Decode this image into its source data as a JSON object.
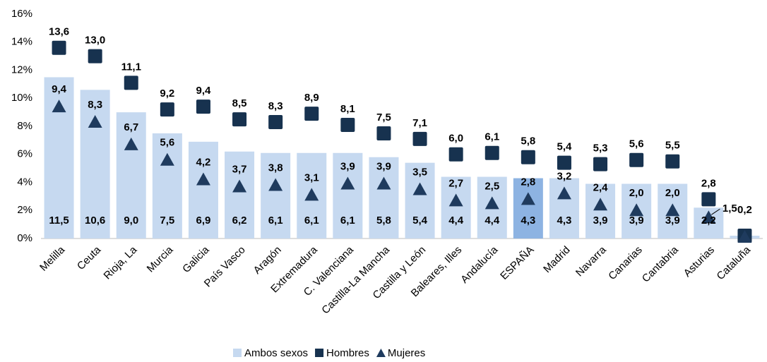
{
  "chart_data": {
    "type": "bar_marker",
    "categories": [
      "Melilla",
      "Ceuta",
      "Rioja, La",
      "Murcia",
      "Galicia",
      "País Vasco",
      "Aragón",
      "Extremadura",
      "C. Valenciana",
      "Castilla-La Mancha",
      "Castilla y León",
      "Baleares, Illes",
      "Andalucía",
      "ESPAÑA",
      "Madrid",
      "Navarra",
      "Canarias",
      "Cantabria",
      "Asturias",
      "Cataluña"
    ],
    "series": [
      {
        "name": "Ambos sexos",
        "color": "#c6d9f0",
        "highlight_color": "#8db3e2",
        "highlight_index": 13,
        "marker": "bar",
        "values": [
          11.5,
          10.6,
          9.0,
          7.5,
          6.9,
          6.2,
          6.1,
          6.1,
          6.1,
          5.8,
          5.4,
          4.4,
          4.4,
          4.3,
          4.3,
          3.9,
          3.9,
          3.9,
          2.2,
          0.2
        ],
        "value_labels": [
          "11,5",
          "10,6",
          "9,0",
          "7,5",
          "6,9",
          "6,2",
          "6,1",
          "6,1",
          "6,1",
          "5,8",
          "5,4",
          "4,4",
          "4,4",
          "4,3",
          "4,3",
          "3,9",
          "3,9",
          "3,9",
          "2,2",
          null
        ]
      },
      {
        "name": "Hombres",
        "color": "#17324f",
        "marker": "square",
        "values": [
          13.6,
          13.0,
          11.1,
          9.2,
          9.4,
          8.5,
          8.3,
          8.9,
          8.1,
          7.5,
          7.1,
          6.0,
          6.1,
          5.8,
          5.4,
          5.3,
          5.6,
          5.5,
          2.8,
          0.2
        ],
        "value_labels": [
          "13,6",
          "13,0",
          "11,1",
          "9,2",
          "9,4",
          "8,5",
          "8,3",
          "8,9",
          "8,1",
          "7,5",
          "7,1",
          "6,0",
          "6,1",
          "5,8",
          "5,4",
          "5,3",
          "5,6",
          "5,5",
          "2,8",
          "0,2"
        ]
      },
      {
        "name": "Mujeres",
        "color": "#1f3b5e",
        "marker": "triangle",
        "values": [
          9.4,
          8.3,
          6.7,
          5.6,
          4.2,
          3.7,
          3.8,
          3.1,
          3.9,
          3.9,
          3.5,
          2.7,
          2.5,
          2.8,
          3.2,
          2.4,
          2.0,
          2.0,
          1.5,
          0.1
        ],
        "value_labels": [
          "9,4",
          "8,3",
          "6,7",
          "5,6",
          "4,2",
          "3,7",
          "3,8",
          "3,1",
          "3,9",
          "3,9",
          "3,5",
          "2,7",
          "2,5",
          "2,8",
          "3,2",
          "2,4",
          "2,0",
          "2,0",
          "1,5",
          null
        ]
      }
    ],
    "ylim": [
      0,
      16
    ],
    "yticks": [
      {
        "value": 0,
        "label": "0%"
      },
      {
        "value": 2,
        "label": "2%"
      },
      {
        "value": 4,
        "label": "4%"
      },
      {
        "value": 6,
        "label": "6%"
      },
      {
        "value": 8,
        "label": "8%"
      },
      {
        "value": 10,
        "label": "10%"
      },
      {
        "value": 12,
        "label": "12%"
      },
      {
        "value": 14,
        "label": "14%"
      },
      {
        "value": 16,
        "label": "16%"
      }
    ],
    "grid": false,
    "legend": "bottom"
  }
}
